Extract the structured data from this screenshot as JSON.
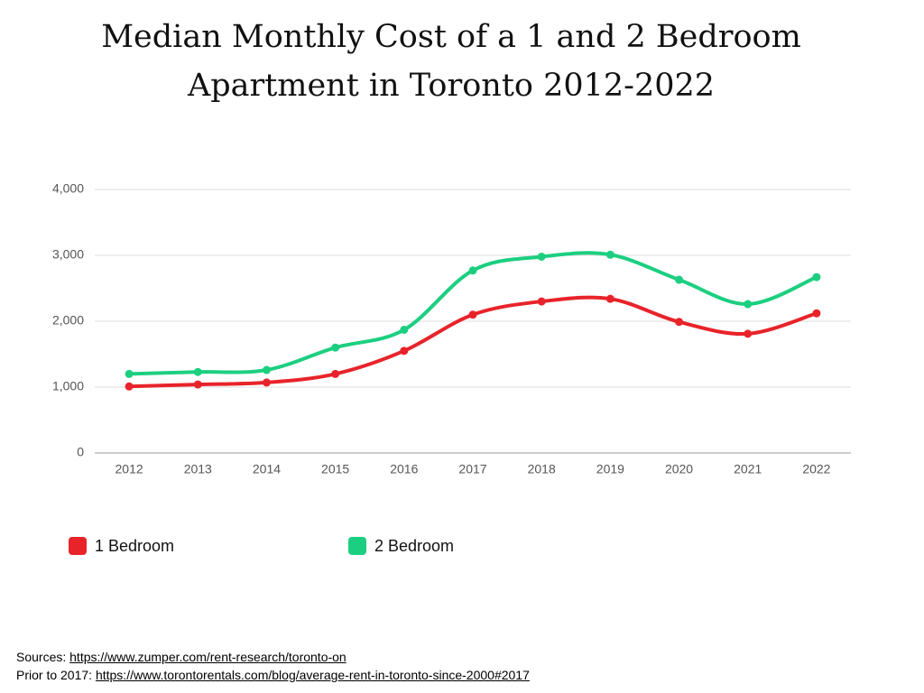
{
  "chart_data": {
    "type": "line",
    "title": "Median Monthly Cost of a 1 and 2 Bedroom Apartment in Toronto 2012-2022",
    "categories": [
      "2012",
      "2013",
      "2014",
      "2015",
      "2016",
      "2017",
      "2018",
      "2019",
      "2020",
      "2021",
      "2022"
    ],
    "series": [
      {
        "name": "1 Bedroom",
        "color": "#e8232a",
        "values": [
          1010,
          1040,
          1070,
          1200,
          1550,
          2100,
          2300,
          2340,
          1990,
          1810,
          2120
        ]
      },
      {
        "name": "2 Bedroom",
        "color": "#1ccf80",
        "values": [
          1200,
          1230,
          1260,
          1600,
          1870,
          2770,
          2980,
          3010,
          2630,
          2260,
          2670
        ]
      }
    ],
    "ylim": [
      0,
      4000
    ],
    "yticks": [
      0,
      {
        "value": 1000,
        "label": "1,000"
      },
      {
        "value": 2000,
        "label": "2,000"
      },
      {
        "value": 3000,
        "label": "3,000"
      },
      {
        "value": 4000,
        "label": "4,000"
      }
    ],
    "grid": true,
    "smooth": true,
    "legend": "bottom"
  },
  "sources": [
    {
      "label": "Sources:",
      "url": "https://www.zumper.com/rent-research/toronto-on"
    },
    {
      "label": "Prior to 2017:",
      "url": "https://www.torontorentals.com/blog/average-rent-in-toronto-since-2000#2017"
    }
  ]
}
